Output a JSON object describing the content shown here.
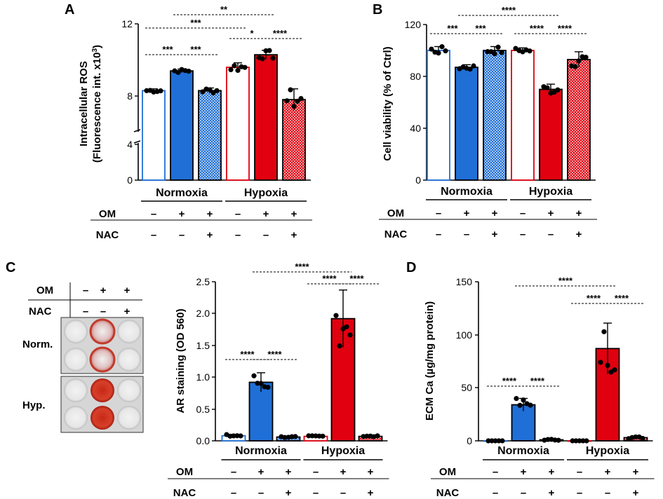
{
  "colors": {
    "blue": "#1f6fd6",
    "red": "#e00010",
    "white": "#ffffff",
    "text": "#000000",
    "plate_bg": "#d9d9d9"
  },
  "treatment_rows": {
    "om_label": "OM",
    "nac_label": "NAC",
    "om_values": [
      "–",
      "+",
      "+",
      "–",
      "+",
      "+"
    ],
    "nac_values": [
      "–",
      "–",
      "+",
      "–",
      "–",
      "+"
    ]
  },
  "photo": {
    "om_label": "OM",
    "nac_label": "NAC",
    "om_values": [
      "–",
      "+",
      "+"
    ],
    "nac_values": [
      "–",
      "–",
      "+"
    ],
    "row1_label": "Norm.",
    "row2_label": "Hyp."
  },
  "chart_data": [
    {
      "panel": "A",
      "type": "bar",
      "ylabel_line1": "Intracellular ROS",
      "ylabel_line2": "(Fluorescence int. x10",
      "ylabel_sup": "3",
      "ylabel_close": ")",
      "axis_break": true,
      "yticks": [
        "0",
        "4",
        "8",
        "12"
      ],
      "groups": [
        "Normoxia",
        "Hypoxia"
      ],
      "categories": [
        "Normoxia Ctrl",
        "Normoxia OM",
        "Normoxia OM+NAC",
        "Hypoxia Ctrl",
        "Hypoxia OM",
        "Hypoxia OM+NAC"
      ],
      "values": [
        8.3,
        9.4,
        8.3,
        9.6,
        10.3,
        7.8
      ],
      "errors": [
        0.1,
        0.1,
        0.15,
        0.25,
        0.25,
        0.6
      ],
      "significance": [
        {
          "from": 0,
          "to": 1,
          "label": "***"
        },
        {
          "from": 1,
          "to": 2,
          "label": "***"
        },
        {
          "from": 3,
          "to": 4,
          "label": "*"
        },
        {
          "from": 4,
          "to": 5,
          "label": "****"
        },
        {
          "from": 0,
          "to": 3,
          "label": "***"
        },
        {
          "from": 1,
          "to": 4,
          "label": "**"
        }
      ]
    },
    {
      "panel": "B",
      "type": "bar",
      "ylabel": "Cell viability (% of Ctrl)",
      "ylim": [
        0,
        120
      ],
      "yticks": [
        "0",
        "40",
        "80",
        "120"
      ],
      "groups": [
        "Normoxia",
        "Hypoxia"
      ],
      "categories": [
        "Normoxia Ctrl",
        "Normoxia OM",
        "Normoxia OM+NAC",
        "Hypoxia Ctrl",
        "Hypoxia OM",
        "Hypoxia OM+NAC"
      ],
      "values": [
        100,
        87,
        100,
        100,
        70,
        93
      ],
      "errors": [
        3,
        2,
        3,
        2,
        4,
        6
      ],
      "significance": [
        {
          "from": 0,
          "to": 1,
          "label": "***"
        },
        {
          "from": 1,
          "to": 2,
          "label": "***"
        },
        {
          "from": 3,
          "to": 4,
          "label": "****"
        },
        {
          "from": 4,
          "to": 5,
          "label": "****"
        },
        {
          "from": 1,
          "to": 4,
          "label": "****"
        }
      ]
    },
    {
      "panel": "C",
      "type": "bar",
      "ylabel": "AR staining (OD 560)",
      "ylim": [
        0,
        2.5
      ],
      "yticks": [
        "0.0",
        "0.5",
        "1.0",
        "1.5",
        "2.0",
        "2.5"
      ],
      "groups": [
        "Normoxia",
        "Hypoxia"
      ],
      "categories": [
        "Normoxia Ctrl",
        "Normoxia OM",
        "Normoxia OM+NAC",
        "Hypoxia Ctrl",
        "Hypoxia OM",
        "Hypoxia OM+NAC"
      ],
      "values": [
        0.08,
        0.92,
        0.06,
        0.07,
        1.92,
        0.07
      ],
      "errors": [
        0.02,
        0.15,
        0.01,
        0.01,
        0.45,
        0.01
      ],
      "significance": [
        {
          "from": 0,
          "to": 1,
          "label": "****"
        },
        {
          "from": 1,
          "to": 2,
          "label": "****"
        },
        {
          "from": 3,
          "to": 4,
          "label": "****"
        },
        {
          "from": 4,
          "to": 5,
          "label": "****"
        },
        {
          "from": 1,
          "to": 4,
          "label": "****"
        }
      ]
    },
    {
      "panel": "D",
      "type": "bar",
      "ylabel": "ECM Ca (µg/mg protein)",
      "ylim": [
        0,
        150
      ],
      "yticks": [
        "0",
        "50",
        "100",
        "150"
      ],
      "groups": [
        "Normoxia",
        "Hypoxia"
      ],
      "categories": [
        "Normoxia Ctrl",
        "Normoxia OM",
        "Normoxia OM+NAC",
        "Hypoxia Ctrl",
        "Hypoxia OM",
        "Hypoxia OM+NAC"
      ],
      "values": [
        0,
        34,
        1,
        0,
        87,
        3
      ],
      "errors": [
        0,
        6,
        0.5,
        0,
        24,
        1
      ],
      "significance": [
        {
          "from": 1,
          "to": 2,
          "label": "****"
        },
        {
          "from": 0,
          "to": 1,
          "label": "****"
        },
        {
          "from": 4,
          "to": 5,
          "label": "****"
        },
        {
          "from": 3,
          "to": 4,
          "label": "****"
        },
        {
          "from": 1,
          "to": 4,
          "label": "****"
        }
      ]
    }
  ]
}
